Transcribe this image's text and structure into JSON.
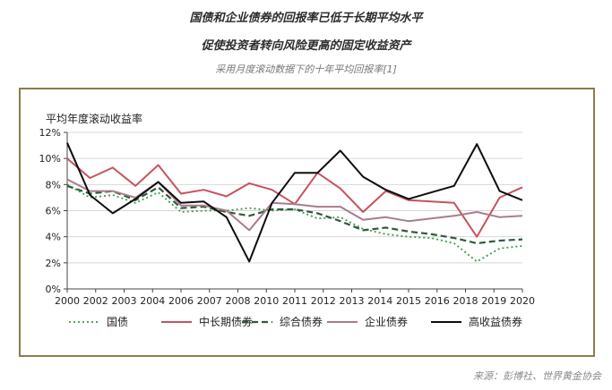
{
  "header": {
    "title_line1": "国债和企业债券的回报率已低于长期平均水平",
    "title_line2": "促使投资者转向风险更高的固定收益资产",
    "subtitle": "采用月度滚动数据下的十年平均回报率[1]"
  },
  "footer": {
    "source": "来源：彭博社、世界黄金协会"
  },
  "colors": {
    "frame": "#8b7d4a",
    "treasury": "#3d9a48",
    "medium_long_treasury": "#c6525e",
    "aggregate": "#2e5a3c",
    "corporate": "#a97c8a",
    "high_yield": "#0d0d0d"
  },
  "chart_data": {
    "type": "line",
    "title": "",
    "ylabel": "平均年度滚动收益率",
    "xlabel": "",
    "x": [
      2000,
      2001,
      2002,
      2003,
      2004,
      2005,
      2006,
      2007,
      2008,
      2009,
      2010,
      2011,
      2012,
      2013,
      2014,
      2015,
      2016,
      2017,
      2018,
      2019,
      2020
    ],
    "x_tick_labels": [
      "2000",
      "2002",
      "2003",
      "2004",
      "2006",
      "2007",
      "2008",
      "2010",
      "2011",
      "2012",
      "2013",
      "2014",
      "2015",
      "2016",
      "2018",
      "2019",
      "2020"
    ],
    "y_ticks": [
      "0%",
      "2%",
      "4%",
      "6%",
      "8%",
      "10%",
      "12%"
    ],
    "ylim": [
      0,
      12
    ],
    "grid": "horizontal",
    "legend_position": "bottom",
    "series": [
      {
        "name": "国债",
        "style": "dotted",
        "color": "#3d9a48",
        "values": [
          8.0,
          7.0,
          7.2,
          6.6,
          7.4,
          5.9,
          6.0,
          6.0,
          6.2,
          6.0,
          6.1,
          5.4,
          5.5,
          4.6,
          4.2,
          4.0,
          3.9,
          3.5,
          2.1,
          3.1,
          3.3
        ]
      },
      {
        "name": "中长期债券",
        "style": "solid",
        "color": "#c6525e",
        "values": [
          10.0,
          8.5,
          9.3,
          7.9,
          9.5,
          7.3,
          7.6,
          7.1,
          8.1,
          7.6,
          6.5,
          8.9,
          7.7,
          5.9,
          7.5,
          6.8,
          6.7,
          6.6,
          4.0,
          7.0,
          7.8
        ]
      },
      {
        "name": "综合债券",
        "style": "dashed",
        "color": "#2e5a3c",
        "values": [
          7.9,
          7.3,
          7.5,
          6.8,
          7.8,
          6.2,
          6.3,
          5.9,
          5.6,
          6.1,
          6.1,
          5.8,
          5.2,
          4.5,
          4.7,
          4.4,
          4.2,
          3.9,
          3.5,
          3.7,
          3.8
        ]
      },
      {
        "name": "企业债券",
        "style": "solid",
        "color": "#a97c8a",
        "values": [
          8.4,
          7.5,
          7.5,
          7.0,
          8.2,
          6.4,
          6.4,
          6.0,
          4.5,
          6.6,
          6.5,
          6.3,
          6.3,
          5.3,
          5.5,
          5.2,
          5.4,
          5.6,
          5.9,
          5.5,
          5.6
        ]
      },
      {
        "name": "高收益债券",
        "style": "solid",
        "color": "#0d0d0d",
        "values": [
          11.2,
          7.2,
          5.8,
          6.9,
          8.2,
          6.6,
          6.7,
          5.5,
          2.1,
          6.6,
          8.9,
          8.9,
          10.6,
          8.6,
          7.6,
          6.9,
          7.4,
          7.9,
          11.1,
          7.5,
          6.8
        ]
      }
    ]
  }
}
